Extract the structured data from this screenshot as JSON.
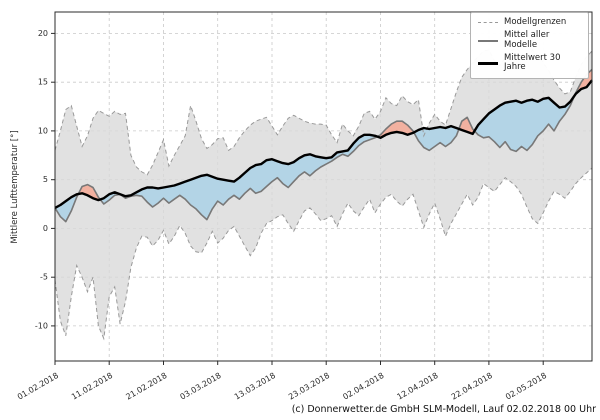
{
  "figure": {
    "y_axis_label": "Mittlere Lufttemperatur [°]",
    "credit": "(c) Donnerwetter.de GmbH SLM-Modell, Lauf 02.02.2018 00 Uhr"
  },
  "legend": {
    "items": [
      {
        "label": "Modellgrenzen",
        "style": "dashed",
        "color": "#999999"
      },
      {
        "label": "Mittel aller Modelle",
        "style": "solid",
        "color": "#787878"
      },
      {
        "label": "Mittelwert 30 Jahre",
        "style": "thick",
        "color": "#000000"
      }
    ]
  },
  "chart_data": {
    "type": "line",
    "title": "",
    "xlabel": "",
    "ylabel": "Mittlere Lufttemperatur [°]",
    "x_unit": "days since 01.02.2018",
    "x_tick_labels": [
      "01.02.2018",
      "11.02.2018",
      "21.02.2018",
      "03.03.2018",
      "13.03.2018",
      "23.03.2018",
      "02.04.2018",
      "12.04.2018",
      "22.04.2018",
      "02.05.2018"
    ],
    "x_tick_days": [
      0,
      10,
      20,
      30,
      40,
      50,
      60,
      70,
      80,
      90
    ],
    "x_tick_rotation": 30,
    "y_ticks": [
      -10,
      -5,
      0,
      5,
      10,
      15,
      20
    ],
    "ylim": [
      -13.6,
      22.2
    ],
    "xlim_days": [
      0,
      99
    ],
    "grid": true,
    "legend_position": "upper right",
    "colors": {
      "band": "#d9d9d9",
      "band_edge": "#999999",
      "model_mean": "#787878",
      "climate_mean": "#000000",
      "warm_anomaly": "#f2b1a0",
      "cold_anomaly": "#b3d4e6",
      "gridline": "#c9c9c9"
    },
    "series": [
      {
        "name": "Modellgrenzen (Minimum)",
        "style": "dashed",
        "color": "#999999",
        "values": [
          -5.3,
          -9.5,
          -11.0,
          -7.0,
          -3.8,
          -5.0,
          -6.5,
          -5.0,
          -10.0,
          -11.3,
          -7.0,
          -6.0,
          -9.8,
          -7.5,
          -4.0,
          -2.0,
          -0.8,
          -0.9,
          -1.8,
          -1.2,
          -0.2,
          -1.6,
          -0.8,
          0.3,
          -0.5,
          -1.8,
          -2.4,
          -2.5,
          -1.5,
          -0.3,
          -1.5,
          -1.0,
          -0.2,
          0.2,
          -0.8,
          -1.8,
          -2.8,
          -2.0,
          -0.5,
          0.5,
          0.8,
          1.2,
          1.4,
          0.5,
          -0.3,
          0.8,
          1.8,
          2.1,
          1.5,
          0.8,
          1.0,
          1.3,
          0.2,
          1.5,
          2.6,
          1.8,
          1.3,
          2.2,
          3.0,
          1.6,
          2.5,
          3.2,
          3.5,
          2.8,
          2.3,
          3.0,
          3.5,
          1.8,
          0.1,
          1.5,
          2.6,
          1.0,
          -0.8,
          0.5,
          1.5,
          2.5,
          3.5,
          2.4,
          3.2,
          4.6,
          4.2,
          3.8,
          4.5,
          5.2,
          4.8,
          4.3,
          3.5,
          2.2,
          1.0,
          0.5,
          1.6,
          2.8,
          3.8,
          3.5,
          3.1,
          3.8,
          4.6,
          5.2,
          5.7,
          6.2
        ]
      },
      {
        "name": "Modellgrenzen (Maximum)",
        "style": "dashed",
        "color": "#999999",
        "values": [
          8.0,
          10.0,
          12.2,
          12.6,
          10.5,
          8.4,
          9.5,
          11.3,
          12.1,
          11.8,
          11.5,
          12.0,
          11.7,
          11.8,
          7.5,
          6.3,
          5.8,
          5.5,
          6.5,
          7.8,
          9.1,
          6.4,
          7.5,
          8.5,
          9.5,
          12.6,
          11.0,
          9.2,
          8.2,
          8.6,
          9.2,
          9.3,
          8.0,
          8.4,
          9.3,
          10.0,
          10.6,
          11.0,
          11.2,
          11.4,
          10.5,
          9.6,
          10.5,
          11.3,
          11.6,
          11.3,
          11.0,
          10.8,
          10.7,
          10.7,
          10.6,
          9.6,
          8.8,
          10.7,
          10.0,
          9.5,
          10.5,
          11.8,
          12.0,
          11.2,
          12.0,
          13.4,
          12.8,
          12.6,
          13.6,
          13.0,
          12.7,
          13.2,
          9.5,
          10.8,
          11.7,
          11.0,
          10.6,
          12.3,
          14.0,
          15.5,
          16.3,
          17.0,
          17.6,
          18.2,
          18.3,
          17.2,
          16.7,
          17.5,
          18.2,
          18.5,
          18.0,
          17.5,
          18.3,
          17.8,
          17.0,
          16.2,
          15.2,
          14.4,
          13.8,
          14.0,
          15.5,
          16.8,
          17.6,
          18.2
        ]
      },
      {
        "name": "Mittel aller Modelle",
        "style": "solid",
        "color": "#787878",
        "values": [
          2.1,
          1.2,
          0.7,
          1.8,
          3.2,
          4.3,
          4.5,
          4.2,
          3.2,
          2.5,
          2.9,
          3.4,
          3.5,
          3.1,
          3.3,
          3.4,
          3.3,
          2.7,
          2.2,
          2.6,
          3.1,
          2.6,
          3.0,
          3.4,
          3.0,
          2.4,
          2.0,
          1.4,
          0.9,
          2.0,
          2.8,
          2.4,
          3.0,
          3.4,
          3.0,
          3.6,
          4.1,
          3.6,
          3.8,
          4.3,
          4.8,
          5.2,
          4.6,
          4.2,
          4.8,
          5.4,
          5.8,
          5.4,
          5.9,
          6.3,
          6.6,
          6.9,
          7.3,
          7.6,
          7.4,
          7.9,
          8.5,
          8.9,
          9.1,
          9.3,
          9.6,
          10.2,
          10.7,
          11.0,
          11.0,
          10.6,
          10.0,
          9.0,
          8.3,
          8.0,
          8.4,
          8.8,
          8.4,
          8.8,
          9.5,
          11.0,
          11.4,
          10.2,
          9.6,
          9.3,
          9.4,
          8.9,
          8.3,
          8.9,
          8.1,
          7.9,
          8.4,
          8.0,
          8.6,
          9.5,
          10.0,
          10.7,
          10.0,
          11.0,
          11.7,
          12.6,
          13.9,
          15.0,
          15.8,
          16.3
        ]
      },
      {
        "name": "Mittelwert 30 Jahre",
        "style": "thick",
        "color": "#000000",
        "values": [
          2.1,
          2.4,
          2.8,
          3.2,
          3.5,
          3.6,
          3.4,
          3.1,
          2.9,
          3.1,
          3.5,
          3.7,
          3.5,
          3.3,
          3.4,
          3.7,
          4.0,
          4.2,
          4.2,
          4.1,
          4.2,
          4.3,
          4.4,
          4.6,
          4.8,
          5.0,
          5.2,
          5.4,
          5.5,
          5.3,
          5.1,
          5.0,
          4.9,
          4.8,
          5.2,
          5.7,
          6.2,
          6.5,
          6.6,
          7.0,
          7.1,
          6.9,
          6.7,
          6.6,
          6.8,
          7.2,
          7.5,
          7.6,
          7.4,
          7.3,
          7.2,
          7.3,
          7.8,
          7.9,
          8.0,
          8.7,
          9.3,
          9.6,
          9.6,
          9.5,
          9.3,
          9.6,
          9.8,
          9.9,
          9.8,
          9.6,
          9.8,
          10.1,
          10.3,
          10.2,
          10.3,
          10.4,
          10.3,
          10.5,
          10.3,
          10.1,
          9.9,
          9.7,
          10.6,
          11.2,
          11.8,
          12.2,
          12.6,
          12.9,
          13.0,
          13.1,
          12.9,
          13.1,
          13.2,
          13.0,
          13.3,
          13.4,
          12.9,
          12.4,
          12.5,
          13.0,
          13.8,
          14.3,
          14.5,
          15.2
        ]
      }
    ],
    "fills": {
      "band_between": [
        "Modellgrenzen (Minimum)",
        "Modellgrenzen (Maximum)"
      ],
      "anomaly_between": [
        "Mittelwert 30 Jahre",
        "Mittel aller Modelle"
      ],
      "warm_means_model_above_climate": true
    }
  }
}
